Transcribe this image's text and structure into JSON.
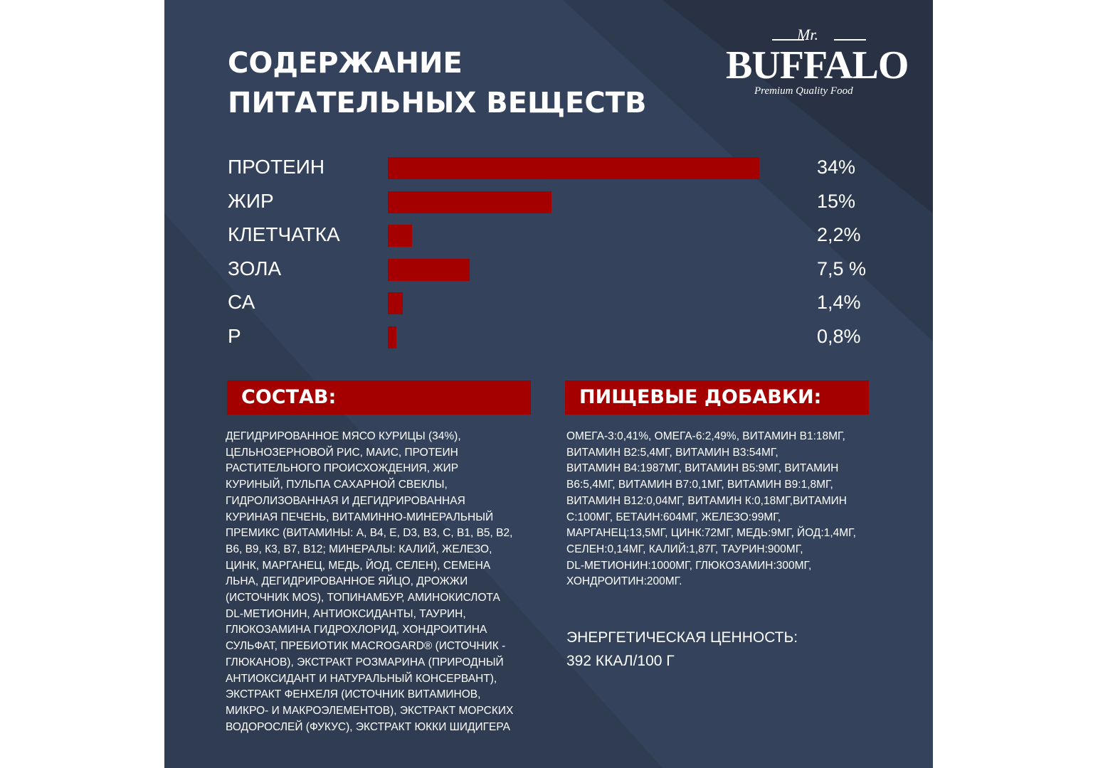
{
  "header": {
    "title_lines": [
      "СОДЕРЖАНИЕ",
      "ПИТАТЕЛЬНЫХ ВЕЩЕСТВ"
    ],
    "logo": {
      "prefix": "Mr.",
      "name": "BUFFALO",
      "tagline": "Premium Quality Food"
    }
  },
  "chart_data": {
    "type": "bar",
    "orientation": "horizontal",
    "color": "#a50000",
    "categories": [
      "ПРОТЕИН",
      "ЖИР",
      "КЛЕТЧАТКА",
      "ЗОЛА",
      "СА",
      "Р"
    ],
    "values": [
      34,
      15,
      2.2,
      7.5,
      1.4,
      0.8
    ],
    "value_labels": [
      "34%",
      "15%",
      "2,2%",
      "7,5 %",
      "1,4%",
      "0,8%"
    ]
  },
  "composition": {
    "heading": "СОСТАВ:",
    "lines": [
      "ДЕГИДРИРОВАННОЕ МЯСО КУРИЦЫ (34%),",
      "ЦЕЛЬНОЗЕРНОВОЙ РИС, МАИС, ПРОТЕИН",
      "РАСТИТЕЛЬНОГО ПРОИСХОЖДЕНИЯ, ЖИР",
      "КУРИНЫЙ, ПУЛЬПА САХАРНОЙ СВЕКЛЫ,",
      "ГИДРОЛИЗОВАННАЯ И ДЕГИДРИРОВАННАЯ",
      "КУРИНАЯ ПЕЧЕНЬ, ВИТАМИННО-МИНЕРАЛЬНЫЙ",
      "ПРЕМИКС (ВИТАМИНЫ: А, В4, Е, D3, В3, С, В1, В5, В2,",
      "В6, В9, К3, В7, В12; МИНЕРАЛЫ: КАЛИЙ, ЖЕЛЕЗО,",
      "ЦИНК, МАРГАНЕЦ, МЕДЬ, ЙОД, СЕЛЕН), СЕМЕНА",
      "ЛЬНА, ДЕГИДРИРОВАННОЕ ЯЙЦО, ДРОЖЖИ",
      "(ИСТОЧНИК MOS), ТОПИНАМБУР, АМИНОКИСЛОТА",
      "DL-МЕТИОНИН, АНТИОКСИДАНТЫ, ТАУРИН,",
      "ГЛЮКОЗАМИНА ГИДРОХЛОРИД, ХОНДРОИТИНА",
      "СУЛЬФАТ, ПРЕБИОТИК MACROGARD® (ИСТОЧНИК -",
      "ГЛЮКАНОВ), ЭКСТРАКТ РОЗМАРИНА (ПРИРОДНЫЙ",
      "АНТИОКСИДАНТ И НАТУРАЛЬНЫЙ КОНСЕРВАНТ),",
      "ЭКСТРАКТ ФЕНХЕЛЯ (ИСТОЧНИК ВИТАМИНОВ,",
      "МИКРО- И МАКРОЭЛЕМЕНТОВ), ЭКСТРАКТ МОРСКИХ",
      "ВОДОРОСЛЕЙ (ФУКУС), ЭКСТРАКТ ЮККИ ШИДИГЕРА"
    ]
  },
  "additives": {
    "heading": "ПИЩЕВЫЕ ДОБАВКИ:",
    "lines": [
      "ОМЕГА-3:0,41%, ОМЕГА-6:2,49%, ВИТАМИН В1:18МГ,",
      "ВИТАМИН В2:5,4МГ, ВИТАМИН В3:54МГ,",
      "ВИТАМИН В4:1987МГ, ВИТАМИН В5:9МГ, ВИТАМИН",
      "В6:5,4МГ, ВИТАМИН В7:0,1МГ, ВИТАМИН В9:1,8МГ,",
      "ВИТАМИН В12:0,04МГ, ВИТАМИН К:0,18МГ,ВИТАМИН",
      "С:100МГ, БЕТАИН:604МГ, ЖЕЛЕЗО:99МГ,",
      "МАРГАНЕЦ:13,5МГ, ЦИНК:72МГ, МЕДЬ:9МГ, ЙОД:1,4МГ,",
      "СЕЛЕН:0,14МГ, КАЛИЙ:1,87Г, ТАУРИН:900МГ,",
      "DL-МЕТИОНИН:1000МГ, ГЛЮКОЗАМИН:300МГ,",
      "ХОНДРОИТИН:200МГ."
    ]
  },
  "energy": {
    "label": "ЭНЕРГЕТИЧЕСКАЯ ЦЕННОСТЬ:",
    "value": "392 ККАЛ/100 Г"
  }
}
